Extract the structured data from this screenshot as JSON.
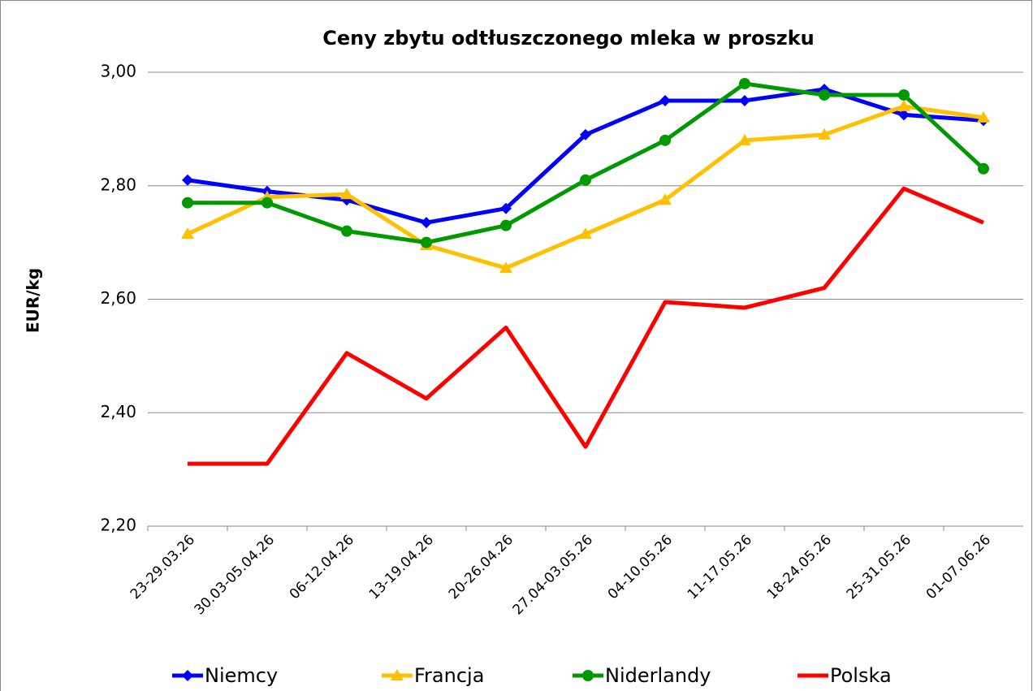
{
  "chart_data": {
    "type": "line",
    "title": "Ceny zbytu odtłuszczonego mleka w proszku",
    "y_label": "EUR/kg",
    "categories": [
      "23-29.03.26",
      "30.03-05.04.26",
      "06-12.04.26",
      "13-19.04.26",
      "20-26.04.26",
      "27.04-03.05.26",
      "04-10.05.26",
      "11-17.05.26",
      "18-24.05.26",
      "25-31.05.26",
      "01-07.06.26"
    ],
    "series": [
      {
        "name": "Niemcy",
        "color": "#0000ff",
        "marker": "diamond",
        "values": [
          2.81,
          2.79,
          2.775,
          2.735,
          2.76,
          2.89,
          2.95,
          2.95,
          2.97,
          2.925,
          2.915
        ]
      },
      {
        "name": "Francja",
        "color": "#ffc000",
        "marker": "triangle",
        "values": [
          2.715,
          2.78,
          2.785,
          2.695,
          2.655,
          2.715,
          2.775,
          2.88,
          2.89,
          2.94,
          2.92
        ]
      },
      {
        "name": "Niderlandy",
        "color": "#009900",
        "marker": "circle",
        "values": [
          2.77,
          2.77,
          2.72,
          2.7,
          2.73,
          2.81,
          2.88,
          2.98,
          2.96,
          2.96,
          2.83
        ]
      },
      {
        "name": "Polska",
        "color": "#ff0000",
        "marker": "none",
        "values": [
          2.31,
          2.31,
          2.505,
          2.425,
          2.55,
          2.34,
          2.595,
          2.585,
          2.62,
          2.795,
          2.735
        ]
      }
    ],
    "ylim": [
      2.2,
      3.0
    ],
    "yticks": [
      {
        "value": 2.2,
        "label": "2,20"
      },
      {
        "value": 2.4,
        "label": "2,40"
      },
      {
        "value": 2.6,
        "label": "2,60"
      },
      {
        "value": 2.8,
        "label": "2,80"
      },
      {
        "value": 3.0,
        "label": "3,00"
      }
    ],
    "grid": true,
    "legend": "bottom"
  }
}
